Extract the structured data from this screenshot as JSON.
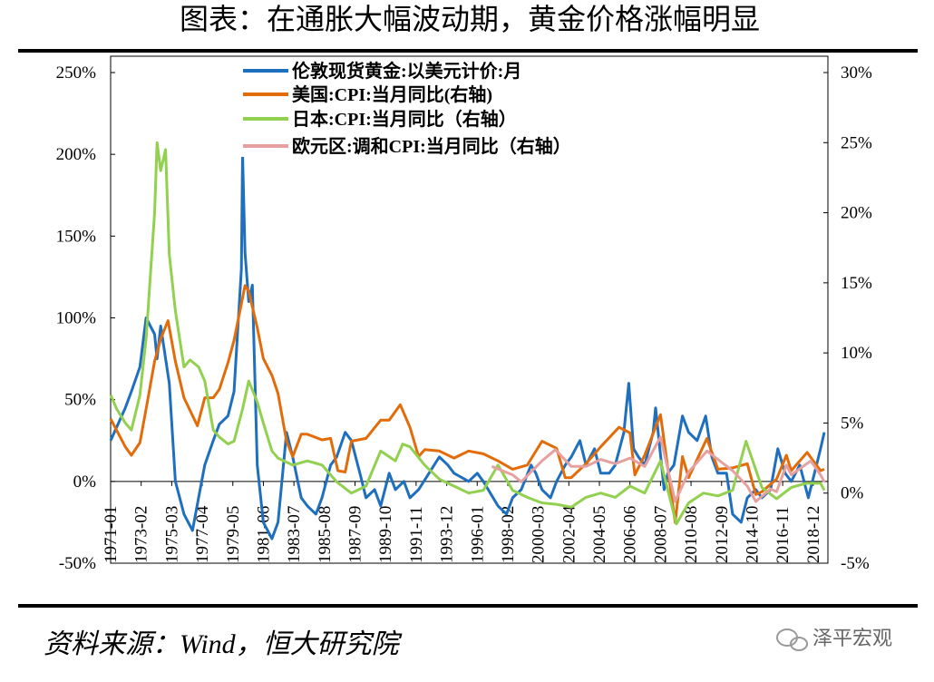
{
  "chart_data": {
    "type": "line",
    "title": "图表：在通胀大幅波动期，黄金价格涨幅明显",
    "source": "资料来源：Wind，恒大研究院",
    "watermark": "泽平宏观",
    "xlim": [
      "1971-01",
      "2019-12"
    ],
    "xticks": [
      "1971-01",
      "1973-02",
      "1975-03",
      "1977-04",
      "1979-05",
      "1981-06",
      "1983-07",
      "1985-08",
      "1987-09",
      "1989-10",
      "1991-11",
      "1993-12",
      "1996-01",
      "1998-02",
      "2000-03",
      "2002-04",
      "2004-05",
      "2006-06",
      "2008-07",
      "2010-08",
      "2012-09",
      "2014-10",
      "2016-11",
      "2018-12"
    ],
    "ylim": [
      -50,
      250
    ],
    "yticks": [
      {
        "value": -50,
        "label": "-50%"
      },
      {
        "value": 0,
        "label": "0%"
      },
      {
        "value": 50,
        "label": "50%"
      },
      {
        "value": 100,
        "label": "100%"
      },
      {
        "value": 150,
        "label": "150%"
      },
      {
        "value": 200,
        "label": "200%"
      },
      {
        "value": 250,
        "label": "250%"
      }
    ],
    "y2lim": [
      -5,
      30
    ],
    "y2ticks": [
      {
        "value": -5,
        "label": "-5%"
      },
      {
        "value": 0,
        "label": "0%"
      },
      {
        "value": 5,
        "label": "5%"
      },
      {
        "value": 10,
        "label": "10%"
      },
      {
        "value": 15,
        "label": "15%"
      },
      {
        "value": 20,
        "label": "20%"
      },
      {
        "value": 25,
        "label": "25%"
      },
      {
        "value": 30,
        "label": "30%"
      }
    ],
    "legend": "top",
    "series": [
      {
        "name": "伦敦现货黄金:以美元计价:月",
        "color": "#1f6fbf",
        "x": [
          "1971-01",
          "1972-01",
          "1972-06",
          "1973-01",
          "1973-06",
          "1974-01",
          "1974-03",
          "1974-06",
          "1975-01",
          "1975-06",
          "1976-01",
          "1976-08",
          "1977-01",
          "1977-06",
          "1978-01",
          "1978-06",
          "1979-01",
          "1979-06",
          "1979-12",
          "1980-01",
          "1980-03",
          "1980-06",
          "1980-09",
          "1981-01",
          "1981-06",
          "1982-01",
          "1982-06",
          "1983-01",
          "1983-06",
          "1984-01",
          "1984-06",
          "1985-01",
          "1985-06",
          "1986-01",
          "1986-06",
          "1987-01",
          "1987-06",
          "1988-01",
          "1988-06",
          "1989-01",
          "1989-06",
          "1990-01",
          "1990-06",
          "1991-01",
          "1991-06",
          "1992-01",
          "1993-06",
          "1994-01",
          "1994-06",
          "1995-06",
          "1996-01",
          "1996-06",
          "1997-06",
          "1998-01",
          "1998-06",
          "1999-01",
          "1999-09",
          "2000-01",
          "2000-06",
          "2001-01",
          "2001-06",
          "2002-01",
          "2002-06",
          "2003-01",
          "2003-06",
          "2004-01",
          "2004-06",
          "2005-01",
          "2005-06",
          "2006-01",
          "2006-05",
          "2006-09",
          "2007-01",
          "2007-06",
          "2008-01",
          "2008-03",
          "2008-10",
          "2009-01",
          "2009-06",
          "2010-01",
          "2010-06",
          "2011-01",
          "2011-08",
          "2012-01",
          "2012-06",
          "2013-01",
          "2013-06",
          "2014-01",
          "2014-06",
          "2015-01",
          "2015-06",
          "2016-01",
          "2016-07",
          "2017-01",
          "2017-06",
          "2018-01",
          "2018-08",
          "2019-01",
          "2019-06",
          "2019-09"
        ],
        "values": [
          25,
          45,
          55,
          70,
          100,
          90,
          75,
          95,
          60,
          0,
          -20,
          -30,
          -10,
          10,
          25,
          35,
          40,
          55,
          130,
          200,
          140,
          110,
          120,
          10,
          -25,
          -35,
          -25,
          30,
          15,
          -10,
          -15,
          -20,
          -10,
          10,
          15,
          30,
          25,
          5,
          -10,
          -5,
          -15,
          5,
          -5,
          0,
          -10,
          -5,
          15,
          10,
          5,
          0,
          5,
          0,
          -15,
          -20,
          -10,
          -5,
          10,
          5,
          -5,
          -10,
          0,
          10,
          15,
          25,
          10,
          20,
          5,
          5,
          10,
          30,
          60,
          20,
          15,
          10,
          30,
          45,
          -5,
          5,
          10,
          40,
          30,
          25,
          40,
          15,
          5,
          5,
          -20,
          -25,
          -10,
          -5,
          -10,
          -5,
          20,
          5,
          0,
          10,
          -10,
          5,
          20,
          30
        ]
      },
      {
        "name": "美国:CPI:当月同比(右轴)",
        "color": "#e36c0a",
        "axis": "y2",
        "x": [
          "1971-01",
          "1972-01",
          "1972-06",
          "1973-01",
          "1973-06",
          "1974-01",
          "1974-06",
          "1974-12",
          "1975-06",
          "1976-01",
          "1976-12",
          "1977-06",
          "1978-01",
          "1978-06",
          "1979-01",
          "1979-06",
          "1980-03",
          "1980-06",
          "1981-01",
          "1981-06",
          "1982-01",
          "1982-06",
          "1983-01",
          "1983-06",
          "1984-01",
          "1984-06",
          "1985-06",
          "1986-01",
          "1986-07",
          "1987-01",
          "1987-06",
          "1988-06",
          "1989-06",
          "1990-01",
          "1990-10",
          "1991-06",
          "1992-01",
          "1992-06",
          "1993-06",
          "1994-06",
          "1995-06",
          "1996-06",
          "1997-06",
          "1998-06",
          "1999-06",
          "2000-06",
          "2001-06",
          "2002-01",
          "2002-06",
          "2003-06",
          "2004-06",
          "2005-09",
          "2006-06",
          "2006-10",
          "2007-06",
          "2008-07",
          "2009-07",
          "2010-01",
          "2010-06",
          "2011-09",
          "2012-06",
          "2013-06",
          "2014-06",
          "2015-01",
          "2015-06",
          "2016-06",
          "2017-02",
          "2017-06",
          "2018-07",
          "2019-06",
          "2019-09"
        ],
        "values": [
          5.3,
          3.3,
          2.7,
          3.6,
          6,
          9.4,
          11,
          12.3,
          9.4,
          6.8,
          4.8,
          6.8,
          6.8,
          7.4,
          9.3,
          10.9,
          14.8,
          14.4,
          11.8,
          9.6,
          8.4,
          7.1,
          3.7,
          2.6,
          4.2,
          4.2,
          3.8,
          3.9,
          1.6,
          1.5,
          3.7,
          3.9,
          5.2,
          5.2,
          6.3,
          4.7,
          2.6,
          3.1,
          3,
          2.5,
          3,
          2.8,
          2.3,
          1.7,
          2,
          3.7,
          3.2,
          1.1,
          1.1,
          2.1,
          3.3,
          4.7,
          4.3,
          1.3,
          2.7,
          5.6,
          -2.1,
          2.6,
          1.1,
          3.9,
          1.7,
          1.8,
          2.1,
          -0.1,
          0.1,
          1,
          2.7,
          1.6,
          2.9,
          1.6,
          1.7
        ]
      },
      {
        "name": "日本:CPI:当月同比（右轴）",
        "color": "#92d050",
        "axis": "y2",
        "x": [
          "1971-01",
          "1971-06",
          "1972-01",
          "1972-06",
          "1973-01",
          "1973-06",
          "1974-01",
          "1974-03",
          "1974-06",
          "1974-10",
          "1975-01",
          "1975-06",
          "1976-01",
          "1976-06",
          "1977-01",
          "1977-06",
          "1978-01",
          "1978-06",
          "1979-01",
          "1979-06",
          "1980-01",
          "1980-06",
          "1981-01",
          "1981-06",
          "1982-01",
          "1982-06",
          "1983-06",
          "1984-06",
          "1985-06",
          "1986-06",
          "1987-06",
          "1988-06",
          "1989-06",
          "1990-06",
          "1990-12",
          "1991-06",
          "1992-06",
          "1993-06",
          "1994-06",
          "1995-06",
          "1996-06",
          "1997-06",
          "1998-06",
          "1999-06",
          "2000-06",
          "2001-06",
          "2002-06",
          "2003-06",
          "2004-06",
          "2005-06",
          "2006-06",
          "2007-06",
          "2008-07",
          "2009-08",
          "2010-06",
          "2011-06",
          "2012-06",
          "2013-06",
          "2014-05",
          "2015-06",
          "2016-06",
          "2017-06",
          "2018-06",
          "2019-06",
          "2019-09"
        ],
        "values": [
          7,
          6,
          5,
          4.5,
          7,
          11,
          20,
          25,
          23,
          24.5,
          17,
          13,
          9,
          9.5,
          9,
          8,
          4.5,
          4,
          3.5,
          3.7,
          6,
          8,
          6.5,
          5,
          3,
          2.5,
          2,
          2.3,
          2,
          0.8,
          0,
          0.5,
          3,
          2.3,
          3.5,
          3.3,
          2,
          1,
          0.5,
          0,
          0.2,
          2,
          0.2,
          -0.3,
          -0.7,
          -0.8,
          -1,
          -0.3,
          0,
          -0.3,
          0.5,
          0,
          2.3,
          -2.2,
          -0.7,
          0,
          -0.2,
          0.2,
          3.7,
          0.4,
          -0.4,
          0.4,
          0.7,
          0.7,
          0.2
        ]
      },
      {
        "name": "欧元区:调和CPI:当月同比（右轴）",
        "color": "#e6a0a0",
        "axis": "y2",
        "x": [
          "1997-01",
          "1998-06",
          "1999-01",
          "2000-06",
          "2001-05",
          "2002-06",
          "2003-06",
          "2004-06",
          "2005-06",
          "2006-06",
          "2007-06",
          "2008-07",
          "2009-07",
          "2010-06",
          "2011-09",
          "2012-06",
          "2013-06",
          "2014-06",
          "2015-01",
          "2016-01",
          "2016-06",
          "2017-02",
          "2017-06",
          "2018-10",
          "2019-06",
          "2019-09"
        ],
        "values": [
          1.9,
          1.3,
          0.8,
          2.3,
          3.1,
          1.9,
          1.9,
          2.4,
          2.1,
          2.5,
          1.9,
          4,
          -0.6,
          1.5,
          3,
          2.4,
          1.6,
          0.5,
          -0.6,
          0.3,
          0.1,
          2,
          1.3,
          2.3,
          1.3,
          0.8
        ]
      }
    ]
  }
}
